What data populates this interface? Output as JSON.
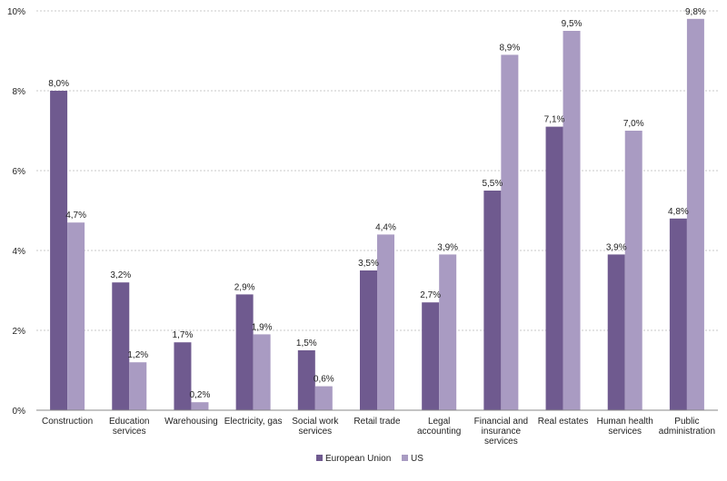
{
  "chart_data": {
    "type": "bar",
    "categories": [
      [
        "Construction"
      ],
      [
        "Education",
        "services"
      ],
      [
        "Warehousing"
      ],
      [
        "Electricity, gas"
      ],
      [
        "Social work",
        "services"
      ],
      [
        "Retail trade"
      ],
      [
        "Legal",
        "accounting"
      ],
      [
        "Financial and",
        "insurance",
        "services"
      ],
      [
        "Real estates"
      ],
      [
        "Human health",
        "services"
      ],
      [
        "Public",
        "administration"
      ]
    ],
    "series": [
      {
        "name": "European Union",
        "color": "#6f5a8f",
        "values": [
          8.0,
          3.2,
          1.7,
          2.9,
          1.5,
          3.5,
          2.7,
          5.5,
          7.1,
          3.9,
          4.8
        ],
        "labels": [
          "8,0%",
          "3,2%",
          "1,7%",
          "2,9%",
          "1,5%",
          "3,5%",
          "2,7%",
          "5,5%",
          "7,1%",
          "3,9%",
          "4,8%"
        ]
      },
      {
        "name": "US",
        "color": "#a99bc2",
        "values": [
          4.7,
          1.2,
          0.2,
          1.9,
          0.6,
          4.4,
          3.9,
          8.9,
          9.5,
          7.0,
          9.8
        ],
        "labels": [
          "4,7%",
          "1,2%",
          "0,2%",
          "1,9%",
          "0,6%",
          "4,4%",
          "3,9%",
          "8,9%",
          "9,5%",
          "7,0%",
          "9,8%"
        ]
      }
    ],
    "ylim": [
      0,
      10
    ],
    "yticks": [
      0,
      2,
      4,
      6,
      8,
      10
    ],
    "ytick_labels": [
      "0%",
      "2%",
      "4%",
      "6%",
      "8%",
      "10%"
    ],
    "grid": true,
    "legend_position": "bottom"
  }
}
